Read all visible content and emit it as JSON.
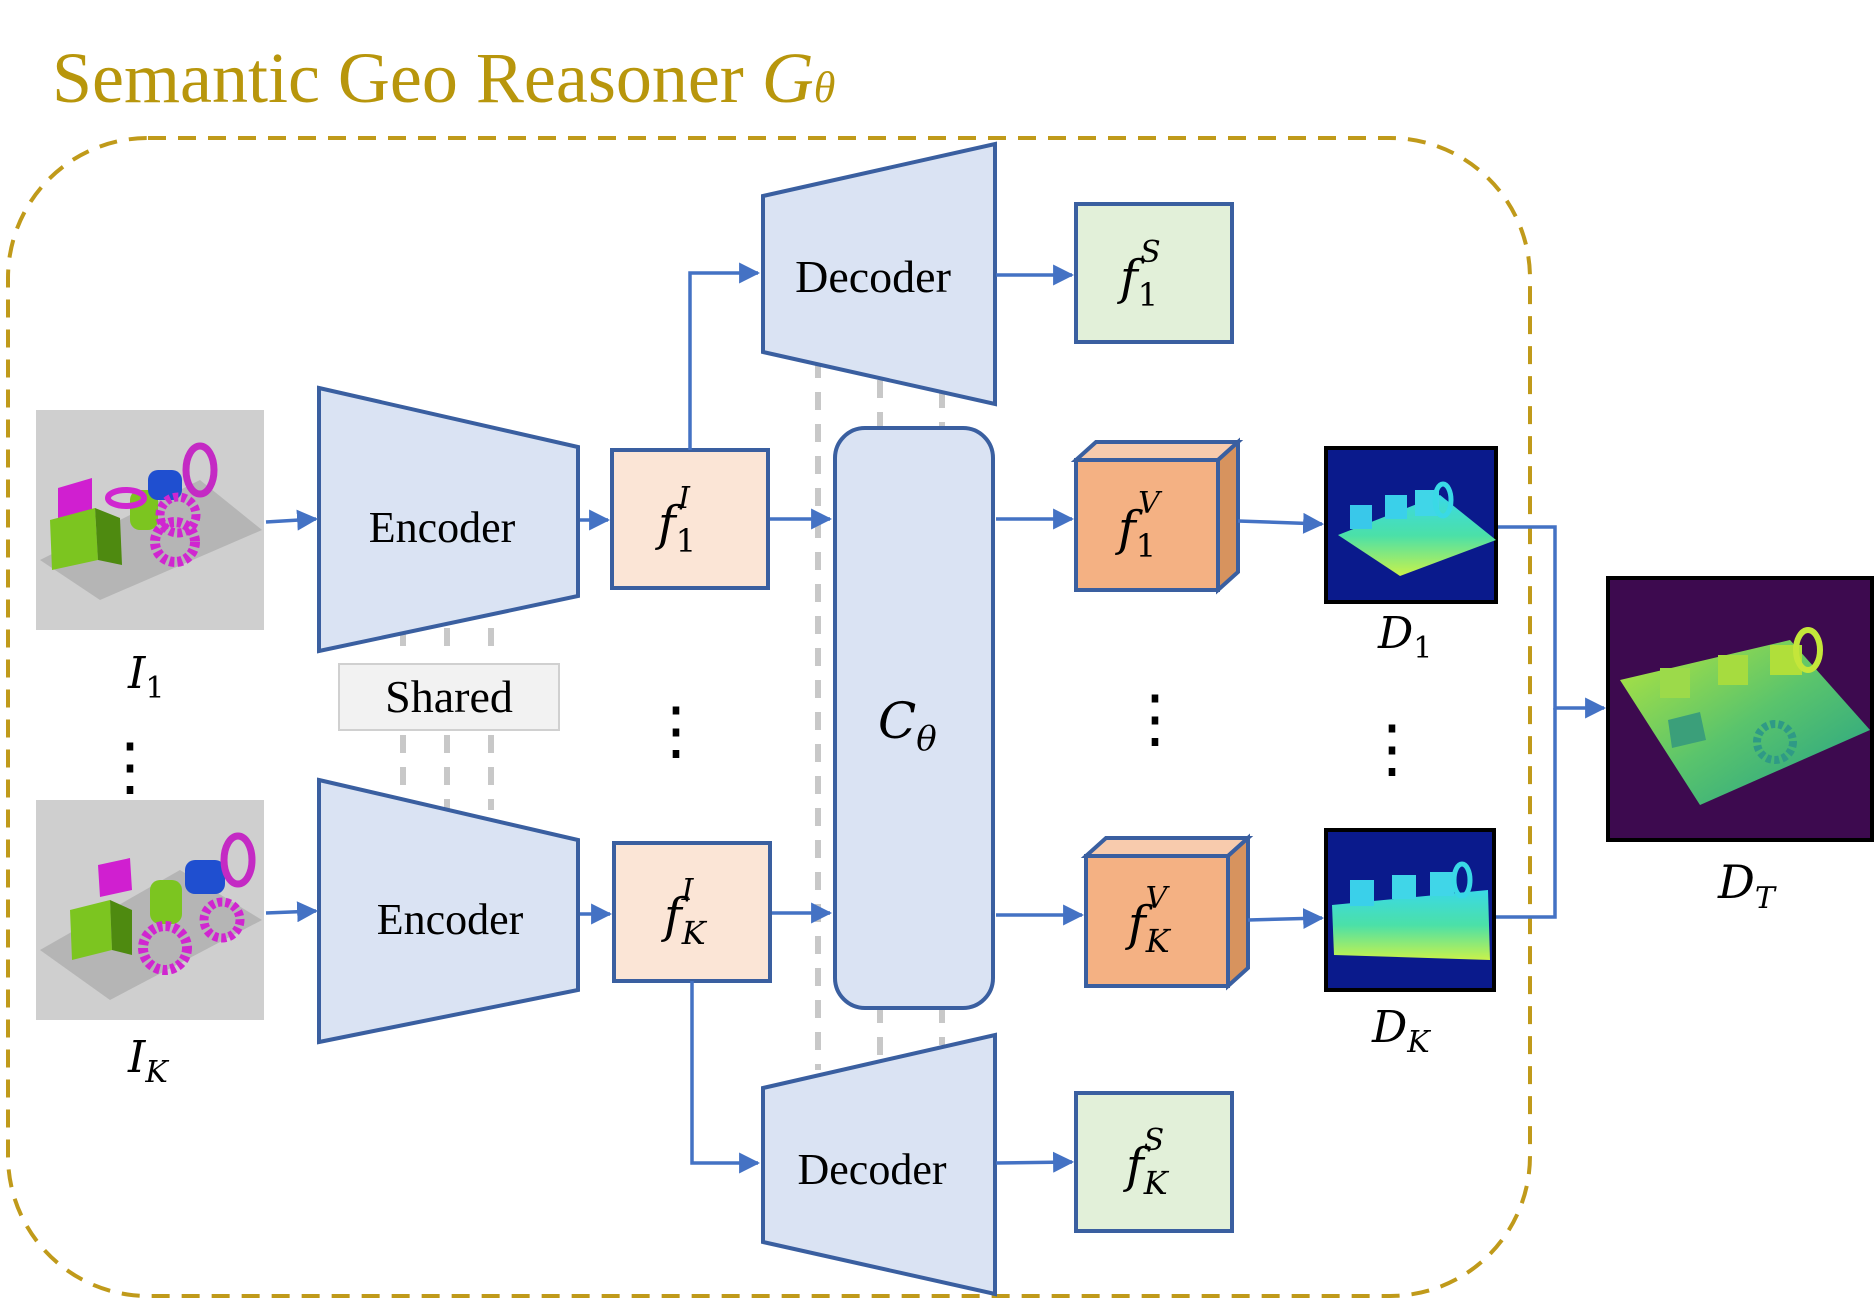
{
  "title": {
    "text": "Semantic Geo Reasoner ",
    "symbol": "G",
    "sub": "θ"
  },
  "labels": {
    "encoder_1": "Encoder",
    "encoder_k": "Encoder",
    "shared": "Shared",
    "decoder_1": "Decoder",
    "decoder_k": "Decoder",
    "dots": "⋮"
  },
  "math": {
    "input_1": {
      "base": "I",
      "sub": "1"
    },
    "input_k": {
      "base": "I",
      "sub": "K"
    },
    "feat_img_1": {
      "base": "f",
      "sub": "1",
      "sup": "I"
    },
    "feat_img_k": {
      "base": "f",
      "sub": "K",
      "sup": "I"
    },
    "feat_sem_1": {
      "base": "f",
      "sub": "1",
      "sup": "S"
    },
    "feat_sem_k": {
      "base": "f",
      "sub": "K",
      "sup": "S"
    },
    "feat_vol_1": {
      "base": "f",
      "sub": "1",
      "sup": "V"
    },
    "feat_vol_k": {
      "base": "f",
      "sub": "K",
      "sup": "V"
    },
    "cost": {
      "base": "C",
      "sub": "θ"
    },
    "depth_1": {
      "base": "D",
      "sub": "1"
    },
    "depth_k": {
      "base": "D",
      "sub": "K"
    },
    "depth_t": {
      "base": "D",
      "sub": "T"
    }
  },
  "colors": {
    "title_gold": "#B8960C",
    "dashed_border": "#C09A1A",
    "arrow_blue": "#4472C4",
    "trap_fill": "#DAE3F3",
    "trap_stroke": "#3A5FA0",
    "img_feat_fill": "#FBE5D6",
    "sem_feat_fill": "#E2F0D9",
    "vol_feat_fill": "#F4B183",
    "vol_feat_side": "#D7935E",
    "shared_fill": "#F2F2F2",
    "shared_stroke": "#D0D0D0",
    "gray_dash": "#C8C8C8"
  }
}
